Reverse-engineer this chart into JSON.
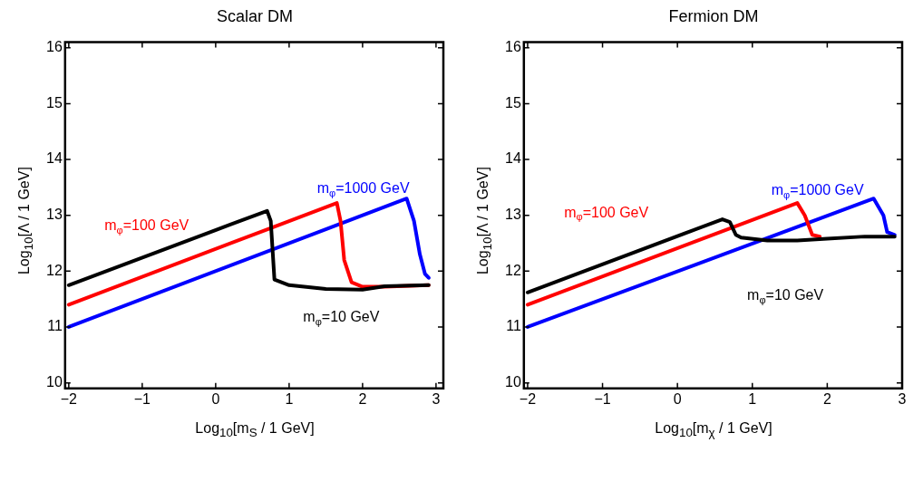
{
  "chart_data": [
    {
      "type": "line",
      "title": "Scalar DM",
      "xlabel": "Log$_{10}$[m$_{S}$ / 1 GeV]",
      "ylabel": "Log$_{10}$[Λ / 1 GeV]",
      "xlim": [
        -2.05,
        3.1
      ],
      "ylim": [
        9.9,
        16.1
      ],
      "xticks": [
        -2,
        -1,
        0,
        1,
        2,
        3
      ],
      "yticks": [
        10,
        11,
        12,
        13,
        14,
        15,
        16
      ],
      "grid": false,
      "legend": false,
      "line_style": "solid",
      "marker": "none",
      "series": [
        {
          "name": "m$_{φ}$=10 GeV",
          "color": "#000000",
          "x": [
            -2,
            0.7,
            0.75,
            0.8,
            1.0,
            1.5,
            2.0,
            2.3,
            2.9
          ],
          "values": [
            11.75,
            13.08,
            12.9,
            11.85,
            11.75,
            11.68,
            11.67,
            11.73,
            11.75
          ]
        },
        {
          "name": "m$_{φ}$=100 GeV",
          "color": "#ff0000",
          "x": [
            -2,
            1.65,
            1.7,
            1.75,
            1.85,
            2.0,
            2.3,
            2.9
          ],
          "values": [
            11.4,
            13.22,
            12.9,
            12.2,
            11.8,
            11.72,
            11.72,
            11.75
          ]
        },
        {
          "name": "m$_{φ}$=1000 GeV",
          "color": "#0000ff",
          "x": [
            -2,
            2.6,
            2.7,
            2.78,
            2.85,
            2.9
          ],
          "values": [
            11.0,
            13.3,
            12.9,
            12.3,
            11.95,
            11.88
          ]
        }
      ]
    },
    {
      "type": "line",
      "title": "Fermion DM",
      "xlabel": "Log$_{10}$[m$_{χ}$ / 1 GeV]",
      "ylabel": "Log$_{10}$[Λ / 1 GeV]",
      "xlim": [
        -2.05,
        3.0
      ],
      "ylim": [
        9.9,
        16.1
      ],
      "xticks": [
        -2,
        -1,
        0,
        1,
        2,
        3
      ],
      "yticks": [
        10,
        11,
        12,
        13,
        14,
        15,
        16
      ],
      "grid": false,
      "legend": false,
      "line_style": "solid",
      "marker": "none",
      "series": [
        {
          "name": "m$_{φ}$=10 GeV",
          "color": "#000000",
          "x": [
            -2,
            0.6,
            0.7,
            0.78,
            0.85,
            1.2,
            1.6,
            2.0,
            2.5,
            2.9
          ],
          "values": [
            11.62,
            12.93,
            12.88,
            12.65,
            12.6,
            12.55,
            12.55,
            12.58,
            12.62,
            12.62
          ]
        },
        {
          "name": "m$_{φ}$=100 GeV",
          "color": "#ff0000",
          "x": [
            -2,
            1.6,
            1.7,
            1.8,
            1.9
          ],
          "values": [
            11.4,
            13.22,
            13.0,
            12.65,
            12.62
          ]
        },
        {
          "name": "m$_{φ}$=1000 GeV",
          "color": "#0000ff",
          "x": [
            -2,
            2.62,
            2.75,
            2.8,
            2.9
          ],
          "values": [
            11.0,
            13.3,
            13.0,
            12.7,
            12.65
          ]
        }
      ]
    }
  ]
}
